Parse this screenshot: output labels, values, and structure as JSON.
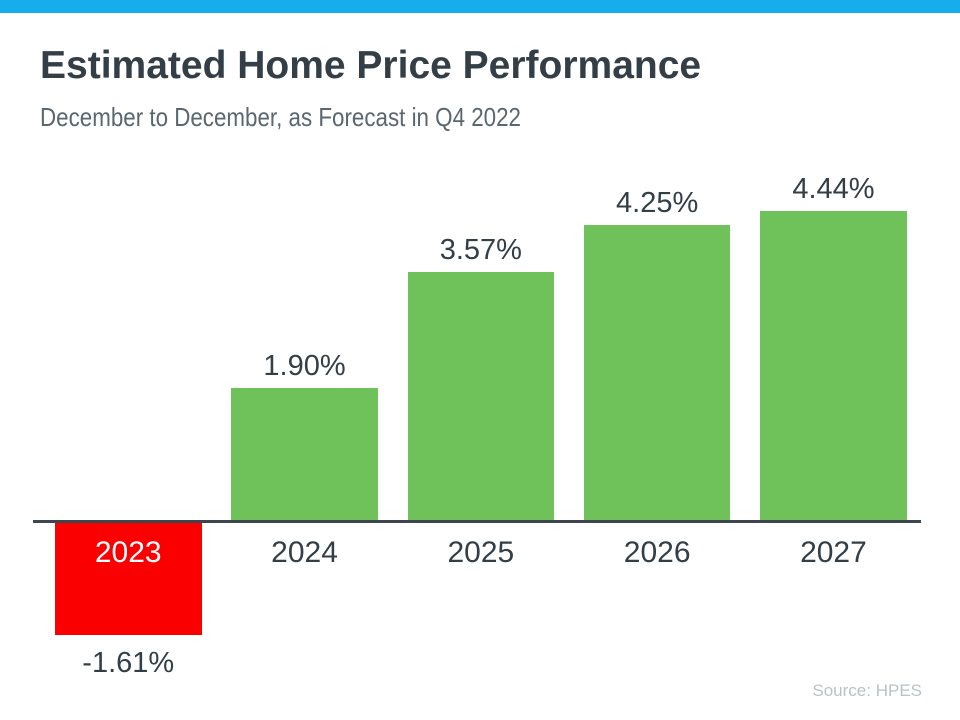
{
  "header": {
    "title": "Estimated Home Price Performance",
    "subtitle": "December to December, as Forecast in Q4 2022"
  },
  "source_note": "Source: HPES",
  "colors": {
    "accent_bar": "#17ACEC",
    "positive_bar": "#6FC15A",
    "negative_bar": "#FB0000",
    "axis": "#3E464D",
    "title_text": "#333E47",
    "subtitle_text": "#5B6770",
    "label_text": "#333E47",
    "negative_year_text": "#FFFFFF",
    "source_text": "#B9C2C8"
  },
  "chart_data": {
    "type": "bar",
    "title": "Estimated Home Price Performance",
    "subtitle": "December to December, as Forecast in Q4 2022",
    "categories": [
      "2023",
      "2024",
      "2025",
      "2026",
      "2027"
    ],
    "values": [
      -1.61,
      1.9,
      3.57,
      4.25,
      4.44
    ],
    "value_labels": [
      "-1.61%",
      "1.90%",
      "3.57%",
      "4.25%",
      "4.44%"
    ],
    "bar_colors": [
      "#FB0000",
      "#6FC15A",
      "#6FC15A",
      "#6FC15A",
      "#6FC15A"
    ],
    "xlabel": "",
    "ylabel": "",
    "ylim": [
      -2,
      5
    ],
    "grid": false,
    "legend": "none",
    "baseline": 0,
    "annotations": [
      "Year labels below axis for positive bars; 2023 year label rendered in white inside the red negative bar"
    ],
    "source": "Source: HPES"
  }
}
